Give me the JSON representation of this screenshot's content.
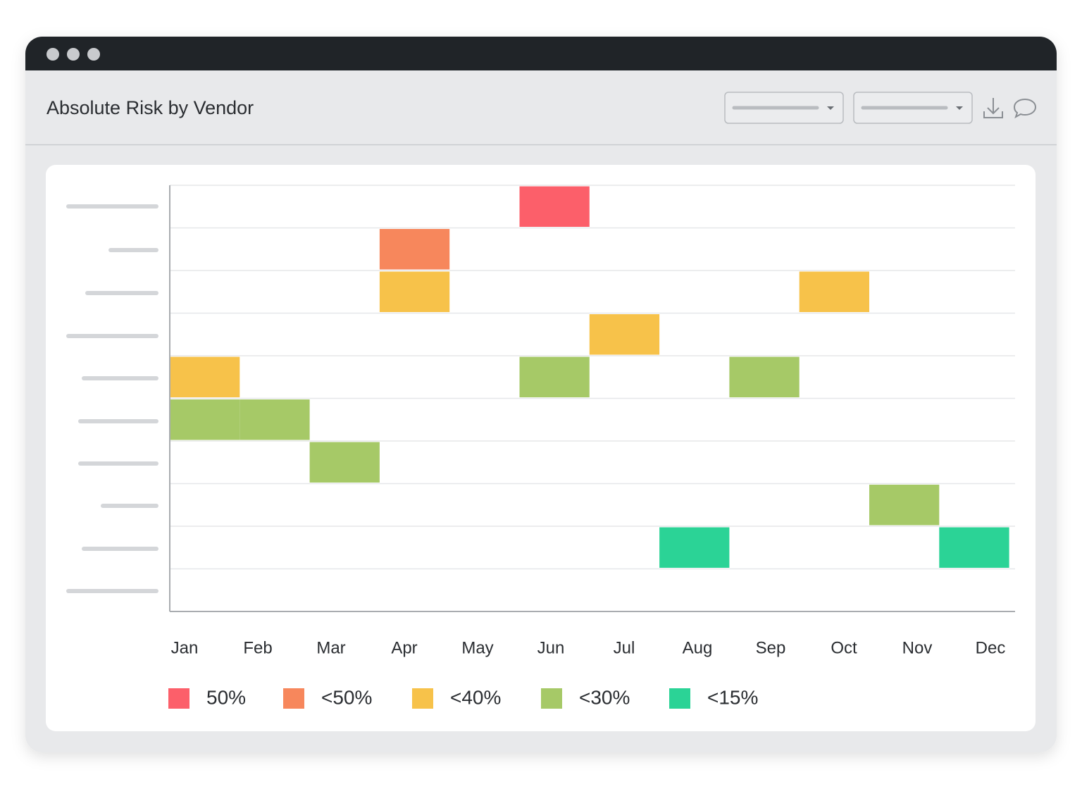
{
  "header": {
    "title": "Absolute Risk by Vendor"
  },
  "chart_data": {
    "type": "heatmap",
    "x": [
      "Jan",
      "Feb",
      "Mar",
      "Apr",
      "May",
      "Jun",
      "Jul",
      "Aug",
      "Sep",
      "Oct",
      "Nov",
      "Dec"
    ],
    "legend": [
      {
        "label": "50%",
        "color": "#fc5f6a"
      },
      {
        "label": "<50%",
        "color": "#f7875c"
      },
      {
        "label": "<40%",
        "color": "#f7c24a"
      },
      {
        "label": "<30%",
        "color": "#a6c967"
      },
      {
        "label": "<15%",
        "color": "#2bd396"
      }
    ],
    "rows": [
      [
        null,
        null,
        null,
        null,
        null,
        "50%",
        null,
        null,
        null,
        null,
        null,
        null
      ],
      [
        null,
        null,
        null,
        "<50%",
        null,
        null,
        null,
        null,
        null,
        null,
        null,
        null
      ],
      [
        null,
        null,
        null,
        "<40%",
        null,
        null,
        null,
        null,
        null,
        "<40%",
        null,
        null
      ],
      [
        null,
        null,
        null,
        null,
        null,
        null,
        "<40%",
        null,
        null,
        null,
        null,
        null
      ],
      [
        "<40%",
        null,
        null,
        null,
        null,
        "<30%",
        null,
        null,
        "<30%",
        null,
        null,
        null
      ],
      [
        "<30%",
        "<30%",
        null,
        null,
        null,
        null,
        null,
        null,
        null,
        null,
        null,
        null
      ],
      [
        null,
        null,
        "<30%",
        null,
        null,
        null,
        null,
        null,
        null,
        null,
        null,
        null
      ],
      [
        null,
        null,
        null,
        null,
        null,
        null,
        null,
        null,
        null,
        null,
        "<30%",
        null
      ],
      [
        null,
        null,
        null,
        null,
        null,
        null,
        null,
        "<15%",
        null,
        null,
        null,
        "<15%"
      ],
      [
        null,
        null,
        null,
        null,
        null,
        null,
        null,
        null,
        null,
        null,
        null,
        null
      ]
    ],
    "grid": true
  }
}
